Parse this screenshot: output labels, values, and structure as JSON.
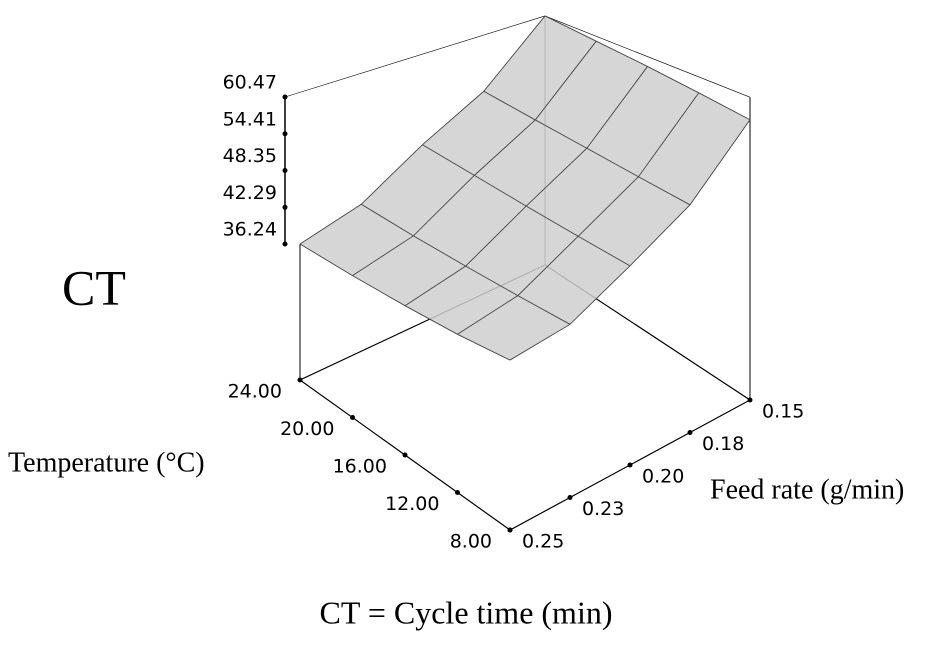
{
  "chart_data": {
    "type": "surface",
    "title": "CT = Cycle time (min)",
    "z_label": "CT",
    "x_label": "Temperature (°C)",
    "y_label": "Feed rate (g/min)",
    "x": [
      24,
      20,
      16,
      12,
      8
    ],
    "y": [
      0.15,
      0.175,
      0.2,
      0.225,
      0.25
    ],
    "z": [
      [
        60.47,
        50.5,
        45.0,
        38.8,
        36.24
      ],
      [
        59.6,
        50.0,
        44.8,
        39.0,
        36.8
      ],
      [
        58.8,
        49.6,
        44.6,
        39.4,
        37.6
      ],
      [
        57.9,
        49.2,
        44.5,
        39.9,
        38.6
      ],
      [
        57.0,
        48.9,
        44.5,
        40.5,
        40.0
      ]
    ],
    "xlim": [
      8,
      24
    ],
    "xticks": [
      {
        "value": 24,
        "label": "24.00"
      },
      {
        "value": 20,
        "label": "20.00"
      },
      {
        "value": 16,
        "label": "16.00"
      },
      {
        "value": 12,
        "label": "12.00"
      },
      {
        "value": 8,
        "label": "8.00"
      }
    ],
    "ylim": [
      0.15,
      0.25
    ],
    "yticks": [
      0.15,
      {
        "value": 0.175,
        "label": "0.18"
      },
      {
        "value": 0.2,
        "label": "0.20"
      },
      {
        "value": 0.225,
        "label": "0.23"
      },
      0.25
    ],
    "zlim": [
      36.24,
      60.47
    ],
    "zticks": [
      36.24,
      42.29,
      48.35,
      54.41,
      60.47
    ],
    "color": "#cfcfcf"
  }
}
